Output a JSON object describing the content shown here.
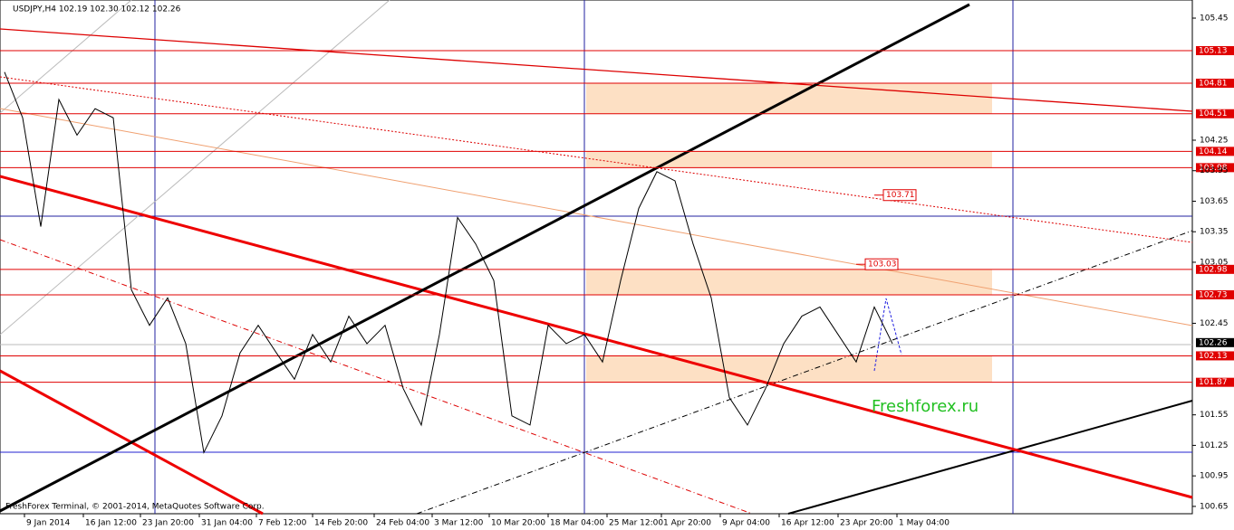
{
  "chart_data": {
    "type": "line",
    "title": "USDJPY,H4  102.19 102.30 102.12 102.26",
    "footer": "FreshForex Terminal, © 2001-2014, MetaQuotes Software Corp.",
    "watermark": "Freshforex.ru",
    "color": "#000000",
    "values": [
      104.92,
      104.47,
      103.4,
      104.65,
      104.3,
      104.56,
      104.47,
      102.78,
      102.43,
      102.7,
      102.25,
      101.18,
      101.54,
      102.16,
      102.43,
      102.16,
      101.9,
      102.34,
      102.07,
      102.52,
      102.25,
      102.43,
      101.81,
      101.45,
      102.34,
      103.49,
      103.23,
      102.87,
      101.54,
      101.45,
      102.43,
      102.25,
      102.34,
      102.07,
      102.87,
      103.58,
      103.94,
      103.85,
      103.23,
      102.7,
      101.72,
      101.45,
      101.81,
      102.25,
      102.52,
      102.61,
      102.34,
      102.07,
      102.61,
      102.25
    ],
    "xlim": [
      -0.25,
      65.55
    ],
    "xticks": [
      {
        "value": 1.1,
        "label": "9 Jan 2014"
      },
      {
        "value": 4.35,
        "label": "16 Jan 12:00"
      },
      {
        "value": 7.5,
        "label": "23 Jan 20:00"
      },
      {
        "value": 10.75,
        "label": "31 Jan 04:00"
      },
      {
        "value": 13.9,
        "label": "7 Feb 12:00"
      },
      {
        "value": 17,
        "label": "14 Feb 20:00"
      },
      {
        "value": 20.4,
        "label": "24 Feb 04:00"
      },
      {
        "value": 23.6,
        "label": "3 Mar 12:00"
      },
      {
        "value": 26.75,
        "label": "10 Mar 20:00"
      },
      {
        "value": 30,
        "label": "18 Mar 04:00"
      },
      {
        "value": 33.25,
        "label": "25 Mar 12:00"
      },
      {
        "value": 36.25,
        "label": "1 Apr 20:00"
      },
      {
        "value": 39.5,
        "label": "9 Apr 04:00"
      },
      {
        "value": 42.75,
        "label": "16 Apr 12:00"
      },
      {
        "value": 46,
        "label": "23 Apr 20:00"
      },
      {
        "value": 49.25,
        "label": "1 May 04:00"
      }
    ],
    "ylim": [
      100.578,
      105.628
    ],
    "yticks": [
      105.45,
      104.25,
      103.95,
      103.65,
      103.35,
      103.05,
      102.45,
      101.55,
      101.25,
      100.95,
      100.65
    ],
    "levels": [
      105.13,
      104.81,
      104.51,
      104.14,
      103.98,
      102.98,
      102.73,
      102.13,
      101.87
    ],
    "level_color": "#e00000",
    "current_price": 102.26,
    "zones": [
      [
        104.81,
        104.51
      ],
      [
        104.14,
        103.98
      ],
      [
        102.98,
        102.73
      ],
      [
        102.13,
        101.87
      ]
    ],
    "zone_color": "#fde0c4",
    "annotations": [
      103.71,
      103.03
    ]
  }
}
